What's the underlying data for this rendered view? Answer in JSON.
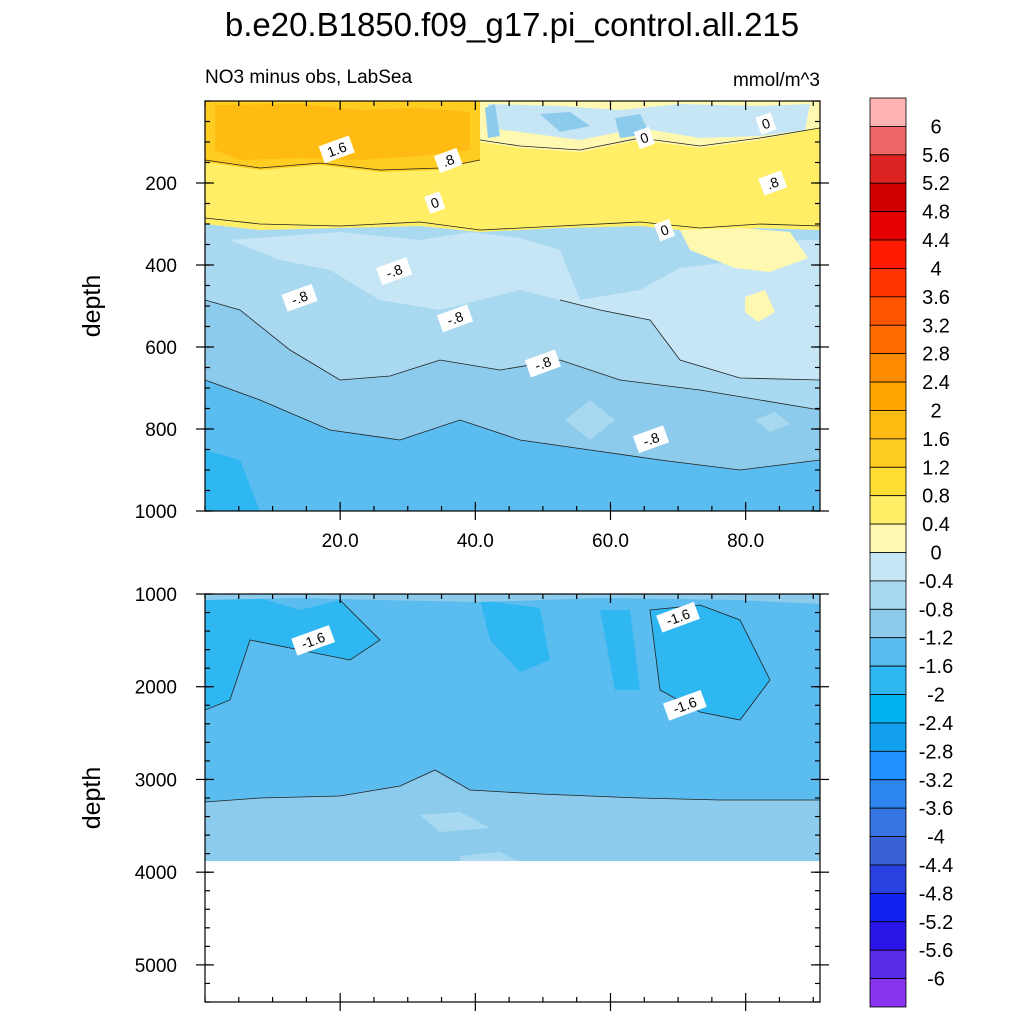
{
  "chart_data": {
    "type": "heatmap",
    "title": "b.e20.B1850.f09_g17.pi_control.all.215",
    "subtitle_left": "NO3 minus obs, LabSea",
    "subtitle_right": "mmol/m^3",
    "ylabel": "depth",
    "x_tick_labels": [
      "20.0",
      "40.0",
      "60.0",
      "80.0"
    ],
    "x_ticks": [
      20,
      40,
      60,
      80
    ],
    "xlim": [
      0,
      91
    ],
    "upper_panel": {
      "ylim": [
        0,
        1000
      ],
      "y_ticks": [
        200,
        400,
        600,
        800,
        1000
      ],
      "y_tick_labels": [
        "200",
        "400",
        "600",
        "800",
        "1000"
      ]
    },
    "lower_panel": {
      "ylim": [
        1000,
        5400
      ],
      "y_ticks": [
        1000,
        2000,
        3000,
        4000,
        5000
      ],
      "y_tick_labels": [
        "1000",
        "2000",
        "3000",
        "4000",
        "5000"
      ],
      "data_bottom_depth": 3880
    },
    "contour_labels": [
      {
        "text": "1.6",
        "panel": "upper",
        "x": 19.5,
        "y": 118
      },
      {
        "text": ".8",
        "panel": "upper",
        "x": 36,
        "y": 145
      },
      {
        "text": "0",
        "panel": "upper",
        "x": 65,
        "y": 90
      },
      {
        "text": "0",
        "panel": "upper",
        "x": 83,
        "y": 55
      },
      {
        "text": ".8",
        "panel": "upper",
        "x": 84,
        "y": 200
      },
      {
        "text": "0",
        "panel": "upper",
        "x": 34,
        "y": 248
      },
      {
        "text": "0",
        "panel": "upper",
        "x": 68,
        "y": 315
      },
      {
        "text": "-.8",
        "panel": "upper",
        "x": 28,
        "y": 415
      },
      {
        "text": "-.8",
        "panel": "upper",
        "x": 14,
        "y": 480
      },
      {
        "text": "-.8",
        "panel": "upper",
        "x": 37,
        "y": 530
      },
      {
        "text": "-.8",
        "panel": "upper",
        "x": 50,
        "y": 640
      },
      {
        "text": "-.8",
        "panel": "upper",
        "x": 66,
        "y": 825
      },
      {
        "text": "-1.6",
        "panel": "lower",
        "x": 16,
        "y": 1500
      },
      {
        "text": "-1.6",
        "panel": "lower",
        "x": 70,
        "y": 1250
      },
      {
        "text": "-1.6",
        "panel": "lower",
        "x": 71,
        "y": 2200
      }
    ],
    "colorbar": {
      "labels": [
        "6",
        "5.6",
        "5.2",
        "4.8",
        "4.4",
        "4",
        "3.6",
        "3.2",
        "2.8",
        "2.4",
        "2",
        "1.6",
        "1.2",
        "0.8",
        "0.4",
        "0",
        "-0.4",
        "-0.8",
        "-1.2",
        "-1.6",
        "-2",
        "-2.4",
        "-2.8",
        "-3.2",
        "-3.6",
        "-4",
        "-4.4",
        "-4.8",
        "-5.2",
        "-5.6",
        "-6"
      ],
      "colors": [
        "#FFB3B3",
        "#EE6666",
        "#DD2222",
        "#D10000",
        "#E60000",
        "#FF1A00",
        "#FF3300",
        "#FF5500",
        "#FF6A00",
        "#FF8C00",
        "#FFA500",
        "#FFBB11",
        "#FFCC22",
        "#FFDD33",
        "#FFEE66",
        "#FFF8B0",
        "#C7E6F5",
        "#A9D9F0",
        "#8DCBEC",
        "#5BBCF0",
        "#2FB7F2",
        "#00B2EE",
        "#119FEE",
        "#1E90FF",
        "#2D85F0",
        "#3674E0",
        "#3A62D8",
        "#2A40E0",
        "#1122EE",
        "#2A14E8",
        "#5A2DE8",
        "#8833EE"
      ]
    }
  },
  "legend_icon": "colorbar-legend"
}
